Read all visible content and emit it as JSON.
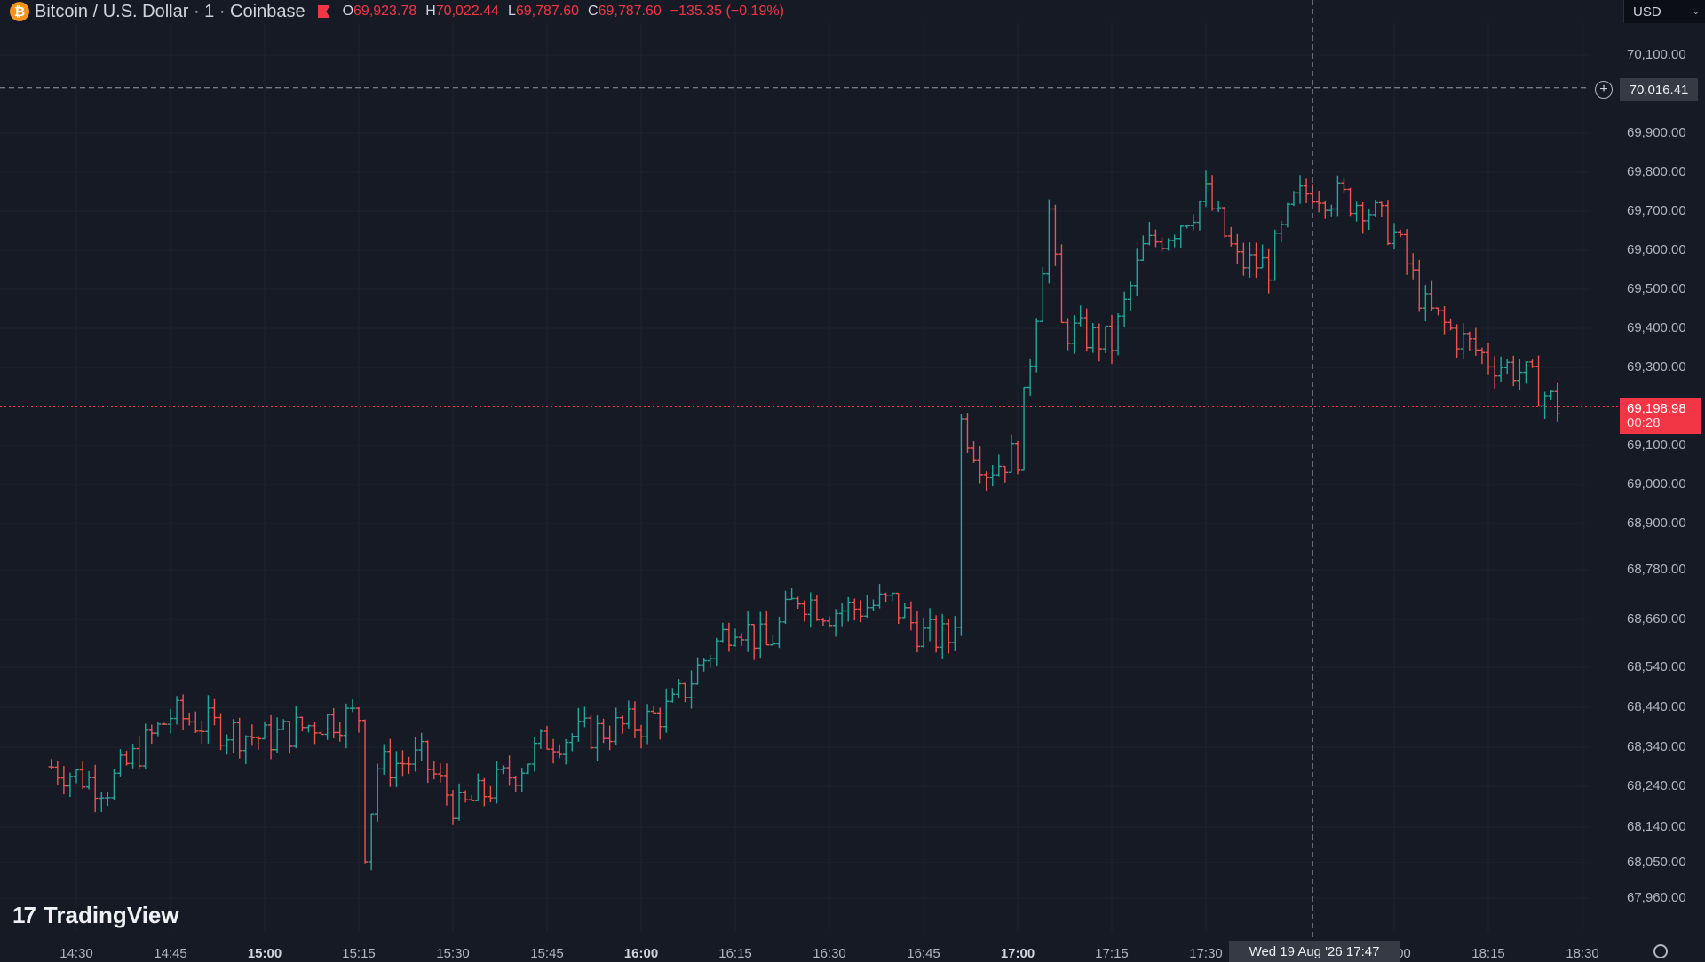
{
  "header": {
    "coin_glyph": "₿",
    "symbol": "Bitcoin / U.S. Dollar · 1 · Coinbase",
    "ohlc": [
      {
        "key": "O",
        "value": "69,923.78"
      },
      {
        "key": "H",
        "value": "70,022.44"
      },
      {
        "key": "L",
        "value": "69,787.60"
      },
      {
        "key": "C",
        "value": "69,787.60"
      }
    ],
    "change": "−135.35 (−0.19%)",
    "flag_color": "#f23645"
  },
  "currency": {
    "label": "USD",
    "chevron": "⌄"
  },
  "logo": {
    "mark": "17",
    "text": "TradingView"
  },
  "crosshair": {
    "price_label": "70,016.41",
    "price": 70016.41,
    "time_label": "Wed 19 Aug '26   17:47",
    "time": "17:47"
  },
  "last_price": {
    "label": "69,198.98",
    "value": 69198.98,
    "countdown": "00:28",
    "color": "#f23645"
  },
  "colors": {
    "up": "#26a69a",
    "down": "#ef5350",
    "background": "#161a25",
    "grid": "#1f2331"
  },
  "chart_data": {
    "type": "bar",
    "style": "ohlc",
    "ylim": [
      67900,
      70150
    ],
    "y_tick_labels": [
      "70,100.00",
      "69,900.00",
      "69,800.00",
      "69,700.00",
      "69,600.00",
      "69,500.00",
      "69,400.00",
      "69,300.00",
      "69,100.00",
      "69,000.00",
      "68,900.00",
      "68,780.00",
      "68,660.00",
      "68,540.00",
      "68,440.00",
      "68,340.00",
      "68,240.00",
      "68,140.00",
      "68,050.00",
      "67,960.00"
    ],
    "y_tick_values": [
      70100,
      69900,
      69800,
      69700,
      69600,
      69500,
      69400,
      69300,
      69100,
      69000,
      68900,
      68780,
      68660,
      68540,
      68440,
      68340,
      68240,
      68140,
      68050,
      67960
    ],
    "x_tick_labels": [
      {
        "t": "14:30",
        "bold": false
      },
      {
        "t": "14:45",
        "bold": false
      },
      {
        "t": "15:00",
        "bold": true
      },
      {
        "t": "15:15",
        "bold": false
      },
      {
        "t": "15:30",
        "bold": false
      },
      {
        "t": "15:45",
        "bold": false
      },
      {
        "t": "16:00",
        "bold": true
      },
      {
        "t": "16:15",
        "bold": false
      },
      {
        "t": "16:30",
        "bold": false
      },
      {
        "t": "16:45",
        "bold": false
      },
      {
        "t": "17:00",
        "bold": true
      },
      {
        "t": "17:15",
        "bold": false
      },
      {
        "t": "17:30",
        "bold": false
      },
      {
        "t": "18:00",
        "bold": false
      },
      {
        "t": "18:15",
        "bold": false
      },
      {
        "t": "18:30",
        "bold": false
      }
    ],
    "x_start": "14:26",
    "x_end": "18:33",
    "grid": true,
    "path_times": [
      "14:26",
      "14:35",
      "14:45",
      "15:00",
      "15:10",
      "15:15",
      "15:16",
      "15:18",
      "15:25",
      "15:31",
      "15:40",
      "15:45",
      "15:50",
      "16:00",
      "16:05",
      "16:10",
      "16:15",
      "16:20",
      "16:25",
      "16:30",
      "16:40",
      "16:45",
      "16:49",
      "16:50",
      "16:51",
      "16:55",
      "17:00",
      "17:05",
      "17:07",
      "17:15",
      "17:20",
      "17:25",
      "17:30",
      "17:35",
      "17:40",
      "17:44",
      "17:47",
      "17:50",
      "17:55",
      "18:00",
      "18:05",
      "18:10",
      "18:15",
      "18:20",
      "18:26"
    ],
    "path_closes": [
      68290,
      68240,
      68420,
      68360,
      68410,
      68420,
      68090,
      68290,
      68310,
      68180,
      68280,
      68360,
      68370,
      68400,
      68440,
      68560,
      68660,
      68590,
      68720,
      68680,
      68700,
      68620,
      68610,
      68670,
      69160,
      69040,
      69080,
      69700,
      69400,
      69360,
      69600,
      69660,
      69740,
      69570,
      69560,
      69720,
      69760,
      69740,
      69720,
      69640,
      69450,
      69380,
      69320,
      69290,
      69200
    ]
  }
}
